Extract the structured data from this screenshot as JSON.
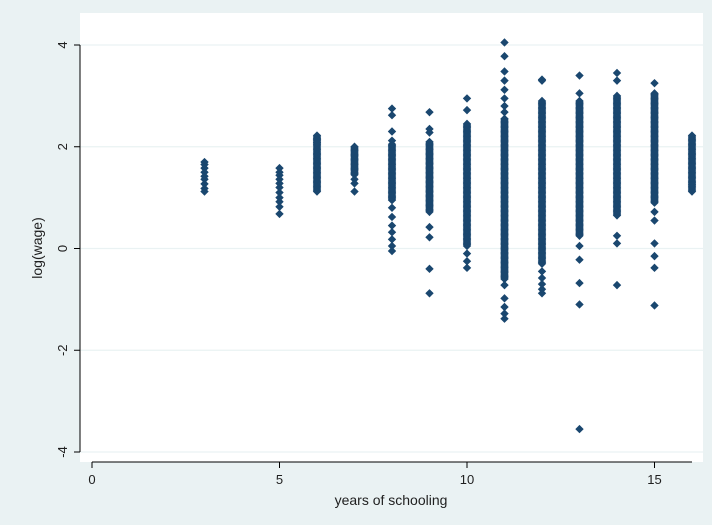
{
  "chart_data": {
    "type": "scatter",
    "title": "",
    "xlabel": "years of schooling",
    "ylabel": "log(wage)",
    "xlim": [
      0,
      16
    ],
    "ylim": [
      -4,
      4
    ],
    "x_ticks": [
      0,
      5,
      10,
      15
    ],
    "x_tick_labels": [
      "0",
      "5",
      "10",
      "15"
    ],
    "y_ticks": [
      4,
      2,
      0,
      -2,
      -4
    ],
    "y_tick_labels": [
      "4",
      "2",
      "0",
      "-2",
      "-4"
    ],
    "grid": "horizontal",
    "marker": "diamond",
    "colors": {
      "background": "#eaf2f3",
      "plot_area": "#ffffff",
      "marker": "#1a476f",
      "gridline": "#eaf2f3"
    },
    "columns": [
      {
        "x": 3,
        "values": [
          1.7,
          1.65,
          1.58,
          1.5,
          1.42,
          1.36,
          1.27,
          1.18,
          1.12
        ]
      },
      {
        "x": 5,
        "values": [
          1.58,
          1.5,
          1.44,
          1.36,
          1.28,
          1.2,
          1.1,
          1.0,
          0.92,
          0.82,
          0.68
        ]
      },
      {
        "x": 6,
        "range": [
          1.12,
          2.22
        ],
        "extra": [
          2.15,
          2.08
        ]
      },
      {
        "x": 7,
        "range": [
          1.45,
          2.02
        ],
        "extra": [
          1.36,
          1.28,
          1.12
        ]
      },
      {
        "x": 8,
        "range": [
          0.95,
          2.05
        ],
        "extra": [
          2.75,
          2.62,
          2.3,
          2.12,
          0.8,
          0.62,
          0.45,
          0.32,
          0.18,
          0.05,
          -0.05
        ]
      },
      {
        "x": 9,
        "range": [
          0.72,
          2.1
        ],
        "extra": [
          2.68,
          2.35,
          2.28,
          0.42,
          0.22,
          -0.4,
          -0.88
        ]
      },
      {
        "x": 10,
        "range": [
          0.05,
          2.45
        ],
        "extra": [
          2.95,
          2.72,
          -0.1,
          -0.25,
          -0.38
        ]
      },
      {
        "x": 11,
        "range": [
          -0.6,
          2.55
        ],
        "extra": [
          4.05,
          3.78,
          3.48,
          3.3,
          3.12,
          2.95,
          2.8,
          2.68,
          -0.72,
          -0.98,
          -1.15,
          -1.28,
          -1.38
        ]
      },
      {
        "x": 12,
        "range": [
          -0.3,
          2.92
        ],
        "extra": [
          3.32,
          3.3,
          -0.45,
          -0.58,
          -0.7,
          -0.8,
          -0.88
        ]
      },
      {
        "x": 13,
        "range": [
          0.25,
          2.92
        ],
        "extra": [
          3.4,
          3.05,
          0.05,
          -0.22,
          -0.68,
          -1.1,
          -3.55
        ]
      },
      {
        "x": 14,
        "range": [
          0.65,
          3.02
        ],
        "extra": [
          3.45,
          3.3,
          0.25,
          0.1,
          -0.72
        ]
      },
      {
        "x": 15,
        "range": [
          0.9,
          3.05
        ],
        "extra": [
          3.25,
          0.72,
          0.55,
          0.1,
          -0.15,
          -0.38,
          -1.12
        ]
      },
      {
        "x": 16,
        "range": [
          1.12,
          2.22
        ],
        "extra": [
          1.25
        ]
      }
    ]
  }
}
